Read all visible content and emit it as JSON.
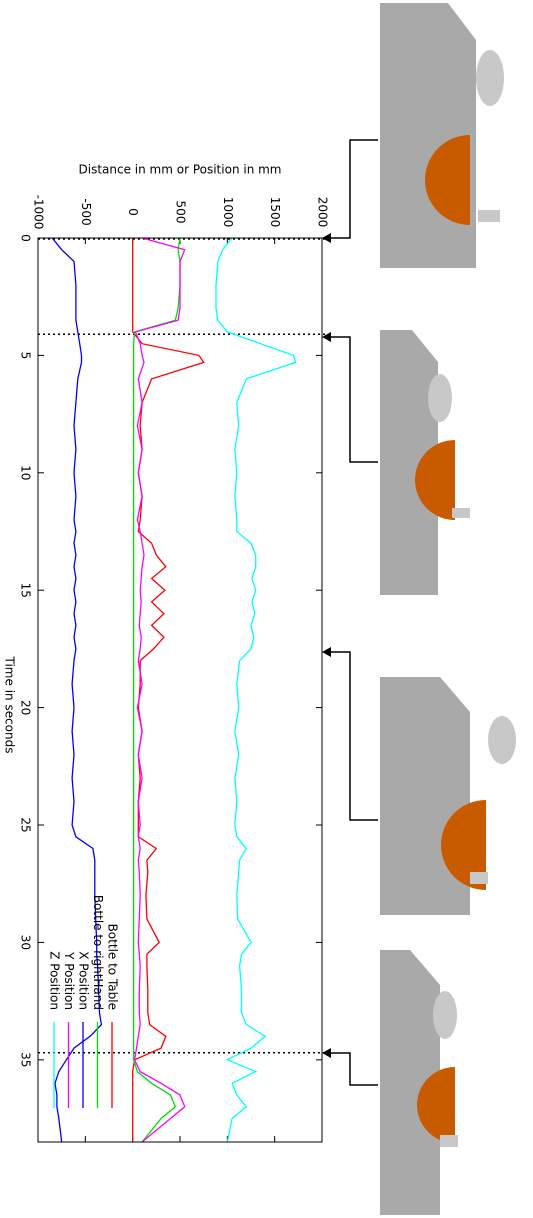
{
  "chart_data": {
    "type": "line",
    "title": "Distance in mm or Position in mm",
    "x_label": "Time in seconds",
    "x": [
      0,
      0.5,
      1,
      2,
      3,
      3.5,
      4,
      4.5,
      5,
      5.3,
      6,
      7,
      8,
      9,
      10,
      11,
      12,
      12.5,
      13,
      13.5,
      14,
      14.5,
      15,
      15.5,
      16,
      16.5,
      17,
      17.5,
      18,
      19,
      20,
      21,
      22,
      23,
      24,
      25,
      25.5,
      26,
      26.5,
      27,
      28,
      29,
      30,
      30.5,
      31,
      32,
      33,
      33.5,
      34,
      34.5,
      35,
      35.5,
      36,
      36.5,
      37,
      37.5,
      38.5
    ],
    "series": [
      {
        "name": "Bottle to Table",
        "color": "#ff0000",
        "values": [
          0,
          0,
          0,
          0,
          0,
          0,
          0,
          100,
          700,
          750,
          200,
          100,
          80,
          100,
          60,
          100,
          80,
          60,
          200,
          250,
          350,
          200,
          340,
          200,
          330,
          200,
          330,
          220,
          80,
          80,
          60,
          100,
          60,
          80,
          60,
          60,
          60,
          250,
          150,
          160,
          140,
          150,
          280,
          150,
          150,
          160,
          160,
          180,
          350,
          300,
          20,
          0,
          0,
          0,
          0,
          0,
          0
        ]
      },
      {
        "name": "Bottle to rightHand",
        "color": "#00dd00",
        "values": [
          500,
          480,
          500,
          500,
          480,
          450,
          20,
          10,
          10,
          10,
          10,
          10,
          10,
          10,
          10,
          10,
          10,
          10,
          10,
          10,
          10,
          10,
          10,
          10,
          10,
          10,
          10,
          10,
          10,
          10,
          10,
          10,
          10,
          10,
          10,
          10,
          10,
          10,
          10,
          10,
          10,
          10,
          10,
          10,
          10,
          10,
          10,
          10,
          10,
          10,
          10,
          50,
          200,
          400,
          450,
          300,
          100
        ]
      },
      {
        "name": "X Position",
        "color": "#0000ff",
        "values": [
          -850,
          -750,
          -620,
          -600,
          -600,
          -600,
          -580,
          -560,
          -540,
          -540,
          -580,
          -600,
          -620,
          -600,
          -620,
          -600,
          -620,
          -600,
          -620,
          -600,
          -620,
          -600,
          -620,
          -600,
          -620,
          -600,
          -620,
          -600,
          -620,
          -640,
          -620,
          -640,
          -620,
          -640,
          -620,
          -640,
          -600,
          -420,
          -400,
          -400,
          -400,
          -390,
          -380,
          -380,
          -370,
          -360,
          -350,
          -330,
          -450,
          -620,
          -700,
          -780,
          -820,
          -800,
          -800,
          -780,
          -750
        ]
      },
      {
        "name": "Y Position",
        "color": "#ff00ff",
        "values": [
          100,
          550,
          500,
          500,
          500,
          480,
          30,
          80,
          100,
          120,
          60,
          100,
          50,
          100,
          60,
          100,
          50,
          80,
          100,
          120,
          100,
          90,
          80,
          90,
          80,
          70,
          90,
          80,
          60,
          100,
          50,
          100,
          60,
          100,
          60,
          80,
          60,
          80,
          60,
          70,
          80,
          70,
          60,
          70,
          80,
          70,
          70,
          80,
          60,
          40,
          20,
          80,
          300,
          500,
          550,
          400,
          100
        ]
      },
      {
        "name": "Z Position",
        "color": "#00ffff",
        "values": [
          1050,
          950,
          900,
          880,
          880,
          900,
          1000,
          1350,
          1700,
          1720,
          1200,
          1100,
          1120,
          1080,
          1100,
          1080,
          1100,
          1100,
          1250,
          1300,
          1300,
          1260,
          1300,
          1260,
          1290,
          1250,
          1280,
          1250,
          1130,
          1100,
          1120,
          1080,
          1120,
          1080,
          1100,
          1080,
          1100,
          1200,
          1130,
          1120,
          1100,
          1110,
          1250,
          1150,
          1130,
          1150,
          1150,
          1200,
          1400,
          1250,
          1000,
          1300,
          1050,
          1100,
          1200,
          1050,
          1000
        ]
      }
    ],
    "xlim": [
      0,
      38.5
    ],
    "xticks": [
      0,
      5,
      10,
      15,
      20,
      25,
      30,
      35
    ],
    "ylim": [
      -1000,
      2000
    ],
    "yticks": [
      -1000,
      -500,
      0,
      500,
      1000,
      1500,
      2000
    ]
  }
}
